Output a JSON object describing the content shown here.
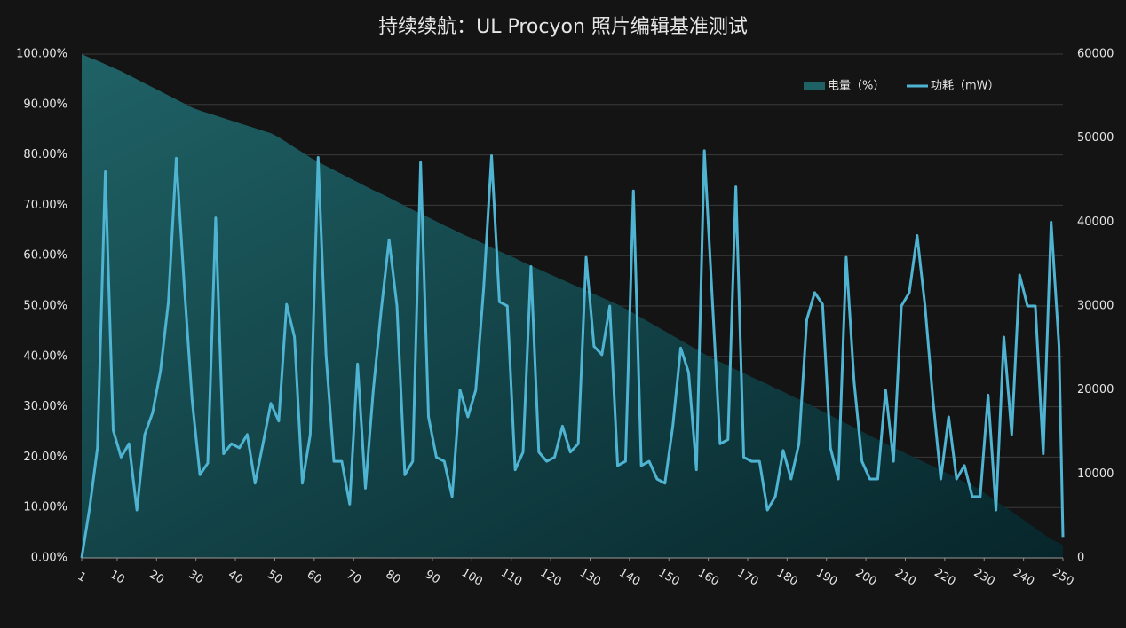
{
  "chart_data": {
    "type": "line",
    "title": "持续续航：UL Procyon 照片编辑基准测试",
    "x": [
      1,
      3,
      5,
      7,
      9,
      11,
      13,
      15,
      17,
      19,
      21,
      23,
      25,
      27,
      29,
      31,
      33,
      35,
      37,
      39,
      41,
      43,
      45,
      47,
      49,
      51,
      53,
      55,
      57,
      59,
      61,
      63,
      65,
      67,
      69,
      71,
      73,
      75,
      77,
      79,
      81,
      83,
      85,
      87,
      89,
      91,
      93,
      95,
      97,
      99,
      101,
      103,
      105,
      107,
      109,
      111,
      113,
      115,
      117,
      119,
      121,
      123,
      125,
      127,
      129,
      131,
      133,
      135,
      137,
      139,
      141,
      143,
      145,
      147,
      149,
      151,
      153,
      155,
      157,
      159,
      161,
      163,
      165,
      167,
      169,
      171,
      173,
      175,
      177,
      179,
      181,
      183,
      185,
      187,
      189,
      191,
      193,
      195,
      197,
      199,
      201,
      203,
      205,
      207,
      209,
      211,
      213,
      215,
      217,
      219,
      221,
      223,
      225,
      227,
      229,
      231,
      233,
      235,
      237,
      239,
      241,
      243,
      245,
      247,
      249,
      250
    ],
    "xlim": [
      1,
      250
    ],
    "xticks": [
      1,
      10,
      20,
      30,
      40,
      50,
      60,
      70,
      80,
      90,
      100,
      110,
      120,
      130,
      140,
      150,
      160,
      170,
      180,
      190,
      200,
      210,
      220,
      230,
      240,
      250
    ],
    "ylim": [
      0,
      100
    ],
    "yticks": [
      {
        "value": 0,
        "label": "0.00%"
      },
      {
        "value": 10,
        "label": "10.00%"
      },
      {
        "value": 20,
        "label": "20.00%"
      },
      {
        "value": 30,
        "label": "30.00%"
      },
      {
        "value": 40,
        "label": "40.00%"
      },
      {
        "value": 50,
        "label": "50.00%"
      },
      {
        "value": 60,
        "label": "60.00%"
      },
      {
        "value": 70,
        "label": "70.00%"
      },
      {
        "value": 80,
        "label": "80.00%"
      },
      {
        "value": 90,
        "label": "90.00%"
      },
      {
        "value": 100,
        "label": "100.00%"
      }
    ],
    "y2lim": [
      0,
      60000
    ],
    "y2ticks": [
      0,
      10000,
      20000,
      30000,
      40000,
      50000,
      60000
    ],
    "grid": true,
    "legend": "top-right",
    "series": [
      {
        "name": "电量（%）",
        "type": "area",
        "axis": "y",
        "color": "#1f6266",
        "values": [
          100,
          99.3,
          98.7,
          98,
          97.3,
          96.6,
          95.8,
          95,
          94.2,
          93.4,
          92.6,
          91.8,
          91,
          90.2,
          89.4,
          88.8,
          88.3,
          87.8,
          87.3,
          86.8,
          86.3,
          85.8,
          85.3,
          84.8,
          84.3,
          83.5,
          82.5,
          81.5,
          80.5,
          79.5,
          78.6,
          77.8,
          77,
          76.2,
          75.4,
          74.6,
          73.8,
          73,
          72.3,
          71.5,
          70.7,
          69.9,
          69.1,
          68.3,
          67.6,
          66.8,
          66,
          65.3,
          64.5,
          63.8,
          63.1,
          62.4,
          61.6,
          60.9,
          60.2,
          59.5,
          58.7,
          58,
          57.3,
          56.6,
          55.9,
          55.2,
          54.5,
          53.8,
          53.1,
          52.4,
          51.7,
          51,
          50.3,
          49.5,
          48.6,
          47.7,
          46.8,
          45.9,
          45,
          44.1,
          43.2,
          42.3,
          41.4,
          40.5,
          39.6,
          38.9,
          38.2,
          37.4,
          36.7,
          35.9,
          35.2,
          34.5,
          33.7,
          33,
          32.2,
          31.5,
          30.7,
          29.9,
          29.1,
          28.3,
          27.5,
          26.7,
          25.9,
          25.1,
          24.3,
          23.5,
          22.7,
          21.9,
          21.2,
          20.4,
          19.7,
          18.9,
          18.2,
          17.4,
          16.7,
          15.9,
          15.1,
          14.4,
          13.5,
          12.4,
          11.3,
          10.2,
          9.2,
          8.1,
          7,
          5.9,
          4.8,
          3.7,
          3,
          2.5
        ]
      },
      {
        "name": "功耗（mW）",
        "type": "line",
        "axis": "y2",
        "color": "#4fb3d2",
        "values": [
          0,
          5900,
          13100,
          46000,
          15200,
          12000,
          13600,
          5700,
          14700,
          17300,
          22300,
          30500,
          47600,
          32600,
          18900,
          9900,
          11300,
          40500,
          12400,
          13600,
          13100,
          14700,
          8900,
          13600,
          18400,
          16300,
          30200,
          26300,
          8900,
          14700,
          47700,
          24200,
          11500,
          11500,
          6400,
          23100,
          8300,
          20000,
          29500,
          37900,
          30000,
          9900,
          11500,
          47100,
          16800,
          12000,
          11500,
          7300,
          20000,
          16800,
          20000,
          32100,
          47900,
          30500,
          30000,
          10500,
          12600,
          34700,
          12600,
          11500,
          12000,
          15700,
          12600,
          13600,
          35800,
          25200,
          24200,
          30000,
          11000,
          11500,
          43700,
          11000,
          11500,
          9400,
          8900,
          15700,
          25000,
          22100,
          10500,
          48500,
          31000,
          13600,
          14100,
          44200,
          12000,
          11500,
          11500,
          5700,
          7300,
          12800,
          9400,
          13600,
          28400,
          31600,
          30200,
          13100,
          9400,
          35800,
          21000,
          11500,
          9400,
          9400,
          20000,
          11500,
          30000,
          31600,
          38400,
          30000,
          18900,
          9400,
          16800,
          9400,
          11000,
          7300,
          7300,
          19400,
          5700,
          26300,
          14700,
          33700,
          30000,
          30000,
          12400,
          40000,
          25200,
          2500
        ]
      }
    ]
  }
}
